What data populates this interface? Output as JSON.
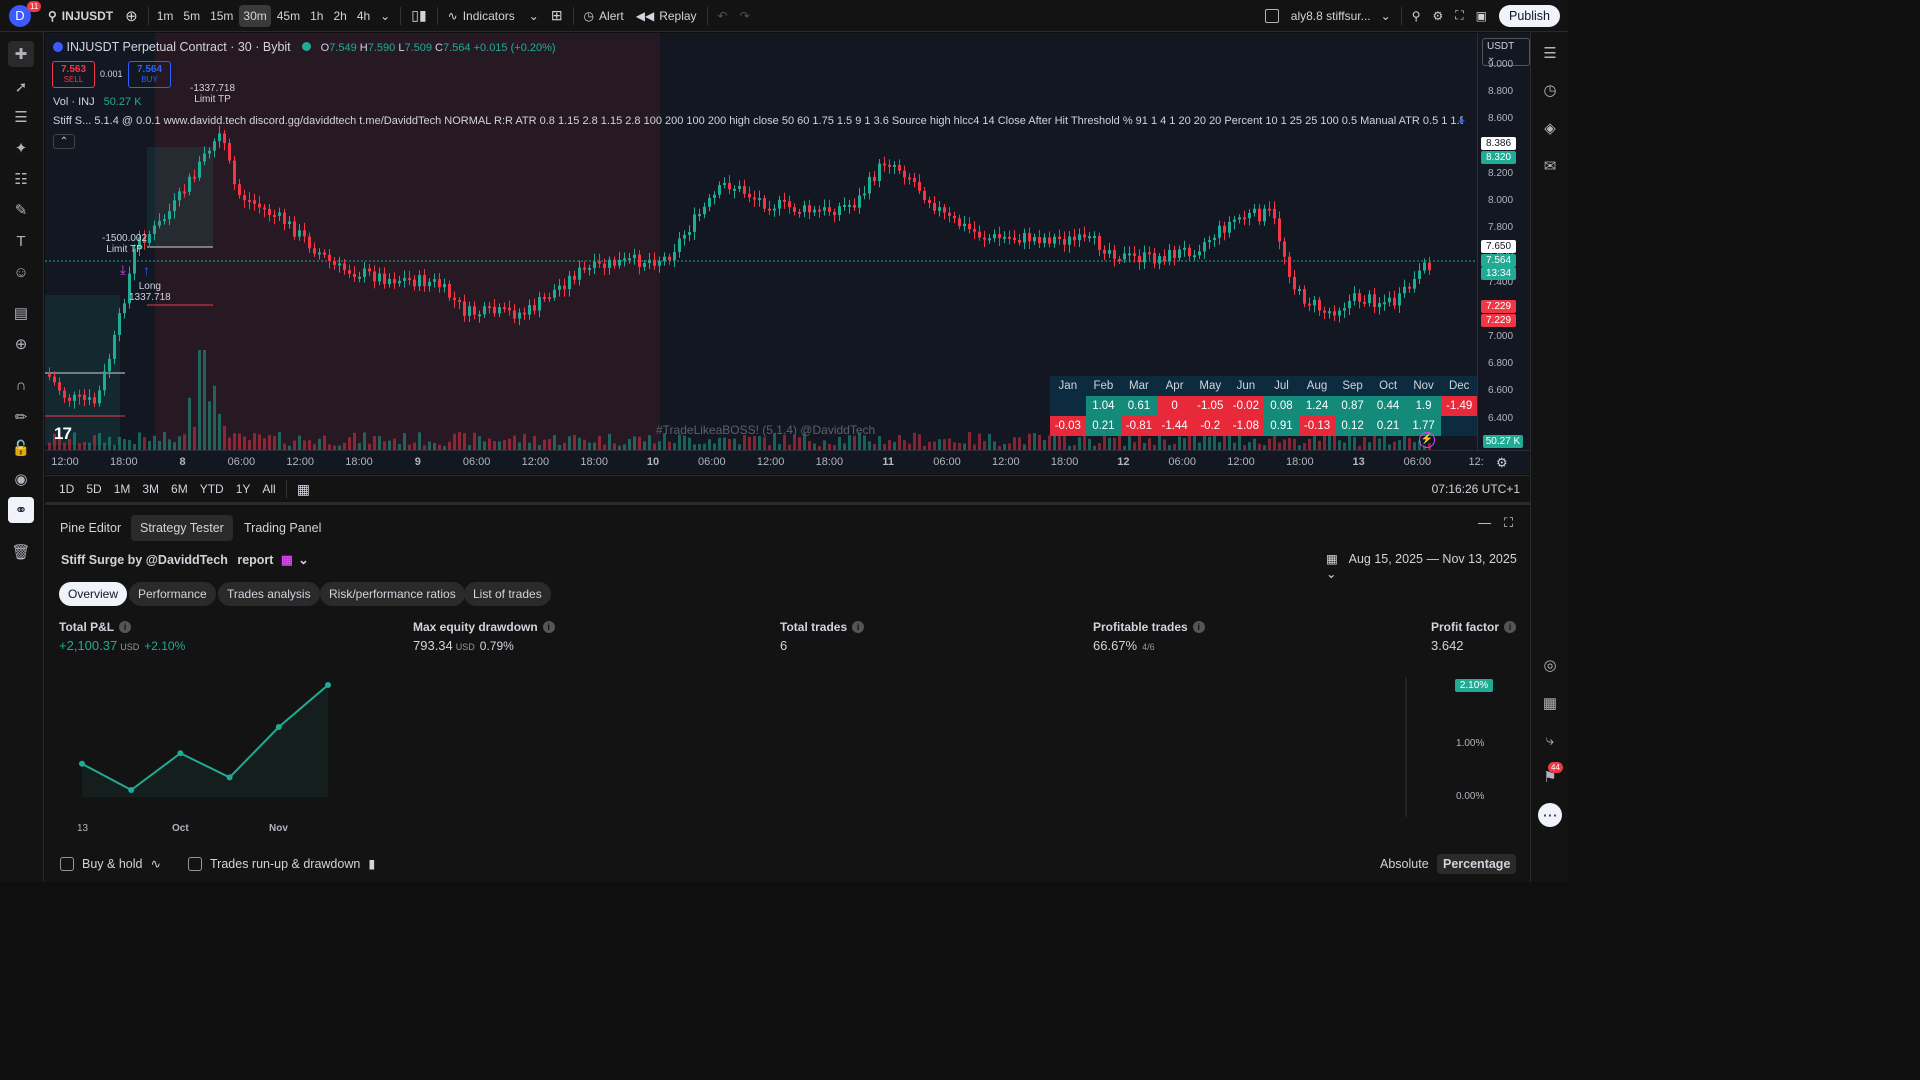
{
  "topbar": {
    "avatar_letter": "D",
    "avatar_badge": "11",
    "symbol": "INJUSDT",
    "timeframes": [
      "1m",
      "5m",
      "15m",
      "30m",
      "45m",
      "1h",
      "2h",
      "4h"
    ],
    "active_timeframe": "30m",
    "indicators_label": "Indicators",
    "alert_label": "Alert",
    "replay_label": "Replay",
    "layout_name": "aly8.8 stiffsur...",
    "publish_label": "Publish"
  },
  "chart": {
    "title": "INJUSDT Perpetual Contract · 30 · Bybit",
    "ohlc": {
      "o_label": "O",
      "o": "7.549",
      "h_label": "H",
      "h": "7.590",
      "l_label": "L",
      "l": "7.509",
      "c_label": "C",
      "c": "7.564",
      "change": "+0.015 (+0.20%)"
    },
    "sell": {
      "price": "7.563",
      "label": "SELL"
    },
    "spread": "0.001",
    "buy": {
      "price": "7.564",
      "label": "BUY"
    },
    "volume_label": "Vol · INJ",
    "volume_value": "50.27 K",
    "strategy_legend": "Stiff S...   5.1.4 @ 0.0.1 www.davidd.tech discord.gg/daviddtech t.me/DaviddTech NORMAL R:R ATR 0.8 1.15 2.8 1.15 2.8 100 200 100 200 high close 50 60 1.75 1.5 9 1 3.6 Source high hlcc4 14 Close After Hit Threshold % 91 1 4 1 20 20 20 Percent 10 1 25 25 100 0.5 Manual ATR 0.5 1 1.5",
    "annotations": {
      "tp_top_value": "-1337.718",
      "tp_top_label": "Limit TP",
      "tp_mid_value": "-1500.002",
      "tp_mid_label": "Limit TP",
      "entry_label": "Long",
      "entry_value": "1337.718"
    },
    "watermark": "#TradeLikeaBOSS! (5.1.4) @DaviddTech",
    "currency": "USDT",
    "price_labels": [
      "9.000",
      "8.800",
      "8.600",
      "8.400",
      "8.200",
      "8.000",
      "7.800",
      "7.600",
      "7.400",
      "7.200",
      "7.000",
      "6.800",
      "6.600",
      "6.400"
    ],
    "price_tags": [
      {
        "text": "8.386",
        "bg": "#ffffff",
        "color": "#131722"
      },
      {
        "text": "8.320",
        "bg": "#22ab94",
        "color": "#ffffff"
      },
      {
        "text": "7.650",
        "bg": "#ffffff",
        "color": "#131722"
      },
      {
        "text": "7.564",
        "bg": "#22ab94",
        "color": "#ffffff"
      },
      {
        "text": "13:34",
        "bg": "#22ab94",
        "color": "#ffffff"
      },
      {
        "text": "7.229",
        "bg": "#f23645",
        "color": "#ffffff"
      },
      {
        "text": "7.229",
        "bg": "#f23645",
        "color": "#ffffff"
      },
      {
        "text": "50.27 K",
        "bg": "#22ab94",
        "color": "#ffffff"
      }
    ],
    "time_labels": [
      "12:00",
      "18:00",
      "8",
      "06:00",
      "12:00",
      "18:00",
      "9",
      "06:00",
      "12:00",
      "18:00",
      "10",
      "06:00",
      "12:00",
      "18:00",
      "11",
      "06:00",
      "12:00",
      "18:00",
      "12",
      "06:00",
      "12:00",
      "18:00",
      "13",
      "06:00",
      "12:"
    ],
    "monthly_table": {
      "headers": [
        "Jan",
        "Feb",
        "Mar",
        "Apr",
        "May",
        "Jun",
        "Jul",
        "Aug",
        "Sep",
        "Oct",
        "Nov",
        "Dec"
      ],
      "rows": [
        [
          "",
          "1.04",
          "0.61",
          "0",
          "-1.05",
          "-0.02",
          "0.08",
          "1.24",
          "0.87",
          "0.44",
          "1.9",
          "-1.49"
        ],
        [
          "-0.03",
          "0.21",
          "-0.81",
          "-1.44",
          "-0.2",
          "-1.08",
          "0.91",
          "-0.13",
          "0.12",
          "0.21",
          "1.77",
          ""
        ]
      ]
    },
    "colors": {
      "up": "#22ab94",
      "down": "#f23645",
      "bg": "#131722"
    }
  },
  "rangebar": {
    "ranges": [
      "1D",
      "5D",
      "1M",
      "3M",
      "6M",
      "YTD",
      "1Y",
      "All"
    ],
    "clock": "07:16:26 UTC+1"
  },
  "panel": {
    "tabs": [
      "Pine Editor",
      "Strategy Tester",
      "Trading Panel"
    ],
    "active_tab": "Strategy Tester",
    "strategy_title": "Stiff Surge by @DaviddTech",
    "report_label": "report",
    "date_range": "Aug 15, 2025 — Nov 13, 2025",
    "subtabs": [
      "Overview",
      "Performance",
      "Trades analysis",
      "Risk/performance ratios",
      "List of trades"
    ],
    "active_subtab": "Overview",
    "metrics": [
      {
        "label": "Total P&L",
        "value": "+2,100.37",
        "unit": "USD",
        "extra": "+2.10%"
      },
      {
        "label": "Max equity drawdown",
        "value": "793.34",
        "unit": "USD",
        "extra": "0.79%"
      },
      {
        "label": "Total trades",
        "value": "6",
        "unit": "",
        "extra": ""
      },
      {
        "label": "Profitable trades",
        "value": "66.67%",
        "unit": "",
        "extra": "4/6"
      },
      {
        "label": "Profit factor",
        "value": "3.642",
        "unit": "",
        "extra": ""
      }
    ],
    "equity_axis": [
      "2.10%",
      "1.00%",
      "0.00%"
    ],
    "equity_x_labels": [
      "13",
      "Oct",
      "Nov"
    ],
    "equity_points": [
      0.25,
      0.0,
      0.35,
      0.12,
      0.6,
      1.0
    ],
    "buy_hold_label": "Buy & hold",
    "runup_label": "Trades run-up & drawdown",
    "absolute_label": "Absolute",
    "percentage_label": "Percentage",
    "notifications_badge": "44"
  }
}
